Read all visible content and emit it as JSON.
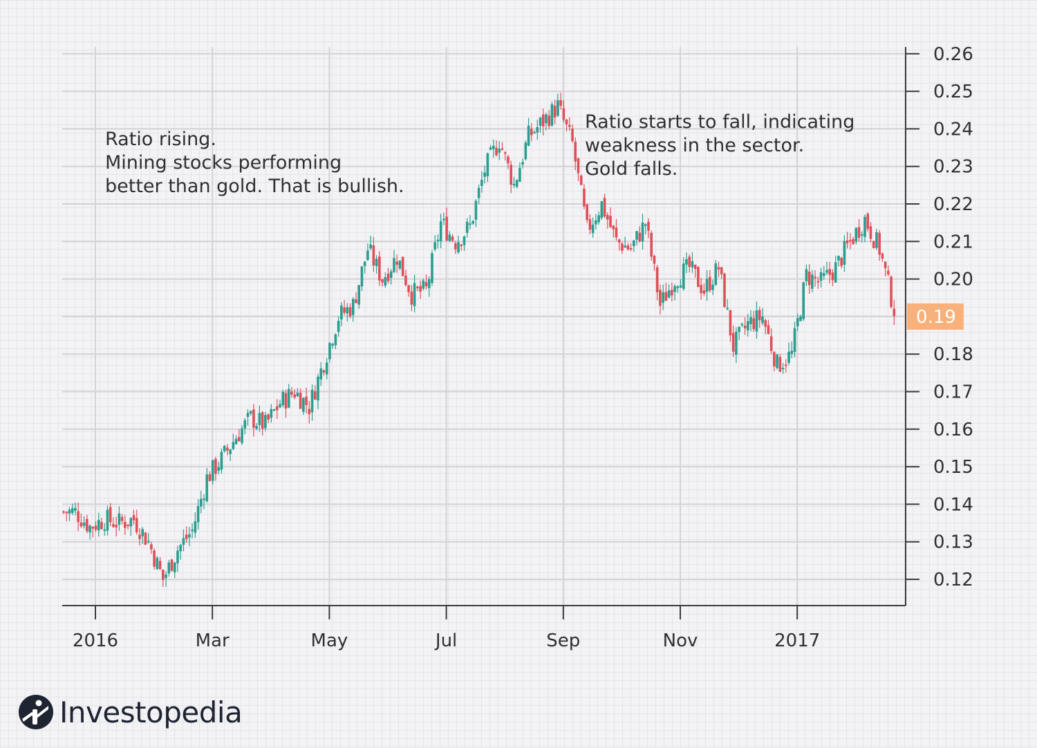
{
  "brand": {
    "name": "Investopedia"
  },
  "colors": {
    "up": "#2a9d8f",
    "down": "#e04e58",
    "current_price_bg": "#f8b17a"
  },
  "annotations": [
    {
      "lines": [
        "Ratio rising.",
        "Mining stocks performing",
        "better than gold. That is bullish."
      ]
    },
    {
      "lines": [
        "Ratio starts to fall, indicating",
        "weakness in the sector.",
        "Gold falls."
      ]
    }
  ],
  "chart_data": {
    "type": "candlestick",
    "title": "",
    "xlabel": "",
    "ylabel": "",
    "ylim": [
      0.113,
      0.262
    ],
    "y_ticks": [
      "0.26",
      "0.25",
      "0.24",
      "0.23",
      "0.22",
      "0.21",
      "0.20",
      "0.18",
      "0.17",
      "0.16",
      "0.15",
      "0.14",
      "0.13",
      "0.12"
    ],
    "y_tick_values": [
      0.26,
      0.25,
      0.24,
      0.23,
      0.22,
      0.21,
      0.2,
      0.18,
      0.17,
      0.16,
      0.15,
      0.14,
      0.13,
      0.12
    ],
    "x_ticks": [
      "2016",
      "Mar",
      "May",
      "Jul",
      "Sep",
      "Nov",
      "2017"
    ],
    "x_tick_weeks": [
      2,
      10,
      18,
      26,
      34,
      42,
      50
    ],
    "current_value": "0.19",
    "current_value_num": 0.19,
    "grid": true,
    "weekly_close": [
      0.138,
      0.134,
      0.136,
      0.135,
      0.136,
      0.13,
      0.12,
      0.128,
      0.133,
      0.147,
      0.152,
      0.158,
      0.163,
      0.161,
      0.167,
      0.17,
      0.166,
      0.178,
      0.19,
      0.193,
      0.208,
      0.2,
      0.206,
      0.196,
      0.197,
      0.215,
      0.21,
      0.214,
      0.229,
      0.237,
      0.225,
      0.238,
      0.242,
      0.246,
      0.236,
      0.213,
      0.22,
      0.21,
      0.208,
      0.215,
      0.193,
      0.2,
      0.203,
      0.197,
      0.203,
      0.182,
      0.188,
      0.19,
      0.177,
      0.18,
      0.201,
      0.199,
      0.203,
      0.21,
      0.216,
      0.208,
      0.192
    ]
  }
}
